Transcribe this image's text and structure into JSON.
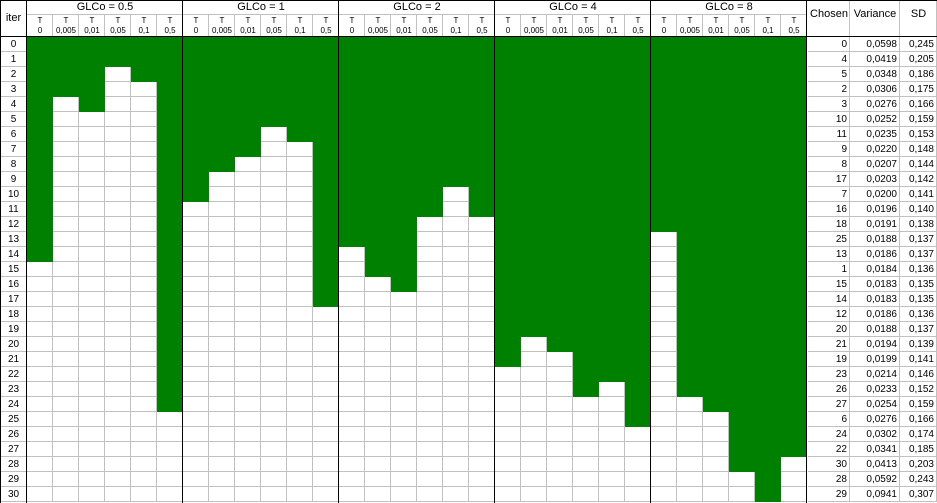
{
  "row_header": "iter",
  "iterations": [
    "0",
    "1",
    "2",
    "3",
    "4",
    "5",
    "6",
    "7",
    "8",
    "9",
    "10",
    "11",
    "12",
    "13",
    "14",
    "15",
    "16",
    "17",
    "18",
    "19",
    "20",
    "21",
    "22",
    "23",
    "24",
    "25",
    "26",
    "27",
    "28",
    "29",
    "30"
  ],
  "t_prefix": "T",
  "t_values": [
    "0",
    "0,005",
    "0,01",
    "0,05",
    "0,1",
    "0,5"
  ],
  "groups": [
    {
      "title": "GLCo = 0.5",
      "green_until": [
        15,
        4,
        5,
        2,
        3,
        25
      ]
    },
    {
      "title": "GLCo = 1",
      "green_until": [
        11,
        9,
        8,
        6,
        7,
        18
      ]
    },
    {
      "title": "GLCo = 2",
      "green_until": [
        14,
        16,
        17,
        12,
        10,
        12
      ]
    },
    {
      "title": "GLCo = 4",
      "green_until": [
        22,
        20,
        21,
        24,
        23,
        26
      ]
    },
    {
      "title": "GLCo = 8",
      "green_until": [
        13,
        24,
        25,
        29,
        31,
        28
      ]
    }
  ],
  "summary": {
    "headers": [
      "Chosen",
      "Variance",
      "SD"
    ],
    "rows": [
      [
        "0",
        "0,0598",
        "0,245"
      ],
      [
        "4",
        "0,0419",
        "0,205"
      ],
      [
        "5",
        "0,0348",
        "0,186"
      ],
      [
        "2",
        "0,0306",
        "0,175"
      ],
      [
        "3",
        "0,0276",
        "0,166"
      ],
      [
        "10",
        "0,0252",
        "0,159"
      ],
      [
        "11",
        "0,0235",
        "0,153"
      ],
      [
        "9",
        "0,0220",
        "0,148"
      ],
      [
        "8",
        "0,0207",
        "0,144"
      ],
      [
        "17",
        "0,0203",
        "0,142"
      ],
      [
        "7",
        "0,0200",
        "0,141"
      ],
      [
        "16",
        "0,0196",
        "0,140"
      ],
      [
        "18",
        "0,0191",
        "0,138"
      ],
      [
        "25",
        "0,0188",
        "0,137"
      ],
      [
        "13",
        "0,0186",
        "0,137"
      ],
      [
        "1",
        "0,0184",
        "0,136"
      ],
      [
        "15",
        "0,0183",
        "0,135"
      ],
      [
        "14",
        "0,0183",
        "0,135"
      ],
      [
        "12",
        "0,0186",
        "0,136"
      ],
      [
        "20",
        "0,0188",
        "0,137"
      ],
      [
        "21",
        "0,0194",
        "0,139"
      ],
      [
        "19",
        "0,0199",
        "0,141"
      ],
      [
        "23",
        "0,0214",
        "0,146"
      ],
      [
        "26",
        "0,0233",
        "0,152"
      ],
      [
        "27",
        "0,0254",
        "0,159"
      ],
      [
        "6",
        "0,0276",
        "0,166"
      ],
      [
        "24",
        "0,0302",
        "0,174"
      ],
      [
        "22",
        "0,0341",
        "0,185"
      ],
      [
        "30",
        "0,0413",
        "0,203"
      ],
      [
        "28",
        "0,0592",
        "0,243"
      ],
      [
        "29",
        "0,0941",
        "0,307"
      ]
    ]
  },
  "colors": {
    "fill": "#008000",
    "empty": "#ffffff",
    "grid": "#c0c0c0",
    "border": "#000000"
  }
}
